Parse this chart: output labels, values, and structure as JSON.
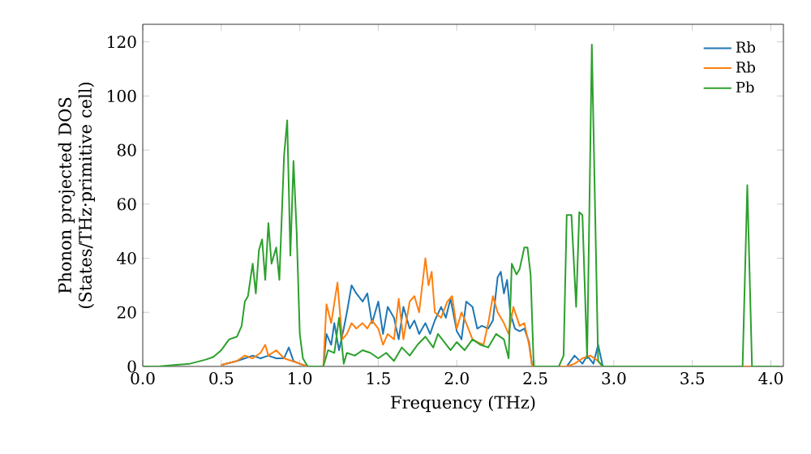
{
  "chart_data": {
    "type": "line",
    "xlabel": "Frequency (THz)",
    "ylabel": "Phonon projected DOS (States/THz·primitive cell)",
    "xlim": [
      0,
      4.08
    ],
    "ylim": [
      0,
      126.5
    ],
    "xticks": [
      {
        "value": 0,
        "label": "0.0"
      },
      {
        "value": 0.5,
        "label": "0.5"
      },
      {
        "value": 1,
        "label": "1.0"
      },
      {
        "value": 1.5,
        "label": "1.5"
      },
      {
        "value": 2,
        "label": "2.0"
      },
      {
        "value": 2.5,
        "label": "2.5"
      },
      {
        "value": 3,
        "label": "3.0"
      },
      {
        "value": 3.5,
        "label": "3.5"
      },
      {
        "value": 4,
        "label": "4.0"
      }
    ],
    "yticks": [
      0,
      20,
      40,
      60,
      80,
      100,
      120
    ],
    "grid": false,
    "legend": "top right",
    "marker": "none",
    "line_style": "solid",
    "series": [
      {
        "name": "Rb",
        "color": "#1f77b4",
        "x": [
          0.5,
          0.6,
          0.65,
          0.7,
          0.75,
          0.8,
          0.85,
          0.9,
          0.93,
          0.96,
          1.0,
          1.05,
          1.15,
          1.17,
          1.2,
          1.22,
          1.25,
          1.28,
          1.3,
          1.33,
          1.36,
          1.4,
          1.43,
          1.46,
          1.5,
          1.53,
          1.56,
          1.6,
          1.63,
          1.66,
          1.7,
          1.73,
          1.76,
          1.8,
          1.83,
          1.86,
          1.9,
          1.93,
          1.96,
          2.0,
          2.03,
          2.06,
          2.1,
          2.13,
          2.16,
          2.2,
          2.23,
          2.26,
          2.28,
          2.3,
          2.32,
          2.34,
          2.37,
          2.4,
          2.43,
          2.46,
          2.48,
          2.7,
          2.75,
          2.8,
          2.83,
          2.87,
          2.9,
          2.93,
          4.05
        ],
        "values": [
          0.5,
          2,
          3,
          4,
          3,
          4,
          3,
          3,
          7,
          2,
          1,
          0,
          0,
          12,
          8,
          16,
          6,
          14,
          20,
          30,
          27,
          24,
          27,
          16,
          24,
          12,
          22,
          18,
          10,
          22,
          14,
          17,
          12,
          16,
          12,
          17,
          22,
          18,
          25,
          13,
          10,
          24,
          22,
          14,
          15,
          14,
          17,
          33,
          35,
          27,
          32,
          20,
          14,
          13,
          14,
          9,
          0,
          0,
          4,
          1,
          4,
          1,
          8,
          0,
          0
        ]
      },
      {
        "name": "Rb",
        "color": "#ff7f0e",
        "x": [
          0.5,
          0.6,
          0.65,
          0.7,
          0.75,
          0.78,
          0.8,
          0.85,
          0.9,
          0.95,
          1.0,
          1.05,
          1.15,
          1.17,
          1.2,
          1.24,
          1.27,
          1.3,
          1.33,
          1.36,
          1.4,
          1.43,
          1.46,
          1.5,
          1.53,
          1.56,
          1.6,
          1.63,
          1.66,
          1.7,
          1.73,
          1.76,
          1.8,
          1.82,
          1.84,
          1.86,
          1.9,
          1.94,
          1.97,
          2.0,
          2.03,
          2.06,
          2.1,
          2.13,
          2.17,
          2.2,
          2.23,
          2.26,
          2.3,
          2.33,
          2.36,
          2.4,
          2.43,
          2.46,
          2.48,
          2.7,
          2.75,
          2.8,
          2.85,
          2.9,
          2.93,
          4.05
        ],
        "values": [
          0.5,
          2,
          4,
          3,
          5,
          8,
          4,
          6,
          3,
          2,
          1,
          0,
          0,
          23,
          16,
          31,
          10,
          12,
          16,
          14,
          16,
          14,
          17,
          14,
          8,
          12,
          10,
          25,
          10,
          24,
          26,
          20,
          40,
          30,
          35,
          20,
          18,
          24,
          26,
          14,
          20,
          16,
          10,
          9,
          8,
          16,
          26,
          20,
          16,
          12,
          22,
          15,
          16,
          8,
          0,
          0,
          1,
          3,
          4,
          2,
          0,
          0
        ]
      },
      {
        "name": "Pb",
        "color": "#2ca02c",
        "x": [
          0,
          0.1,
          0.2,
          0.3,
          0.4,
          0.45,
          0.5,
          0.55,
          0.6,
          0.63,
          0.65,
          0.67,
          0.7,
          0.72,
          0.74,
          0.76,
          0.78,
          0.8,
          0.82,
          0.85,
          0.87,
          0.9,
          0.92,
          0.94,
          0.96,
          0.98,
          1.0,
          1.02,
          1.05,
          1.15,
          1.18,
          1.22,
          1.25,
          1.28,
          1.3,
          1.35,
          1.4,
          1.45,
          1.5,
          1.55,
          1.6,
          1.65,
          1.7,
          1.75,
          1.8,
          1.85,
          1.88,
          1.92,
          1.96,
          2.0,
          2.05,
          2.1,
          2.15,
          2.2,
          2.25,
          2.3,
          2.33,
          2.35,
          2.38,
          2.4,
          2.43,
          2.45,
          2.47,
          2.49,
          2.65,
          2.68,
          2.7,
          2.73,
          2.76,
          2.78,
          2.8,
          2.83,
          2.86,
          2.88,
          2.9,
          2.93,
          3.82,
          3.85,
          3.88,
          4.05
        ],
        "values": [
          0,
          0,
          0.5,
          1,
          2.5,
          3.5,
          6,
          10,
          11,
          15,
          24,
          26,
          38,
          27,
          43,
          47,
          32,
          53,
          38,
          44,
          32,
          78,
          91,
          41,
          76,
          50,
          12,
          3,
          0,
          0,
          6,
          5,
          18,
          1,
          5,
          4,
          6,
          5,
          3,
          5,
          2,
          7,
          4,
          8,
          11,
          7,
          12,
          9,
          6,
          9,
          6,
          10,
          8,
          7,
          12,
          10,
          3,
          38,
          34,
          36,
          44,
          44,
          34,
          0,
          0,
          4,
          56,
          56,
          22,
          57,
          56,
          3,
          119,
          60,
          2,
          0,
          0,
          67,
          0,
          0
        ]
      }
    ]
  }
}
